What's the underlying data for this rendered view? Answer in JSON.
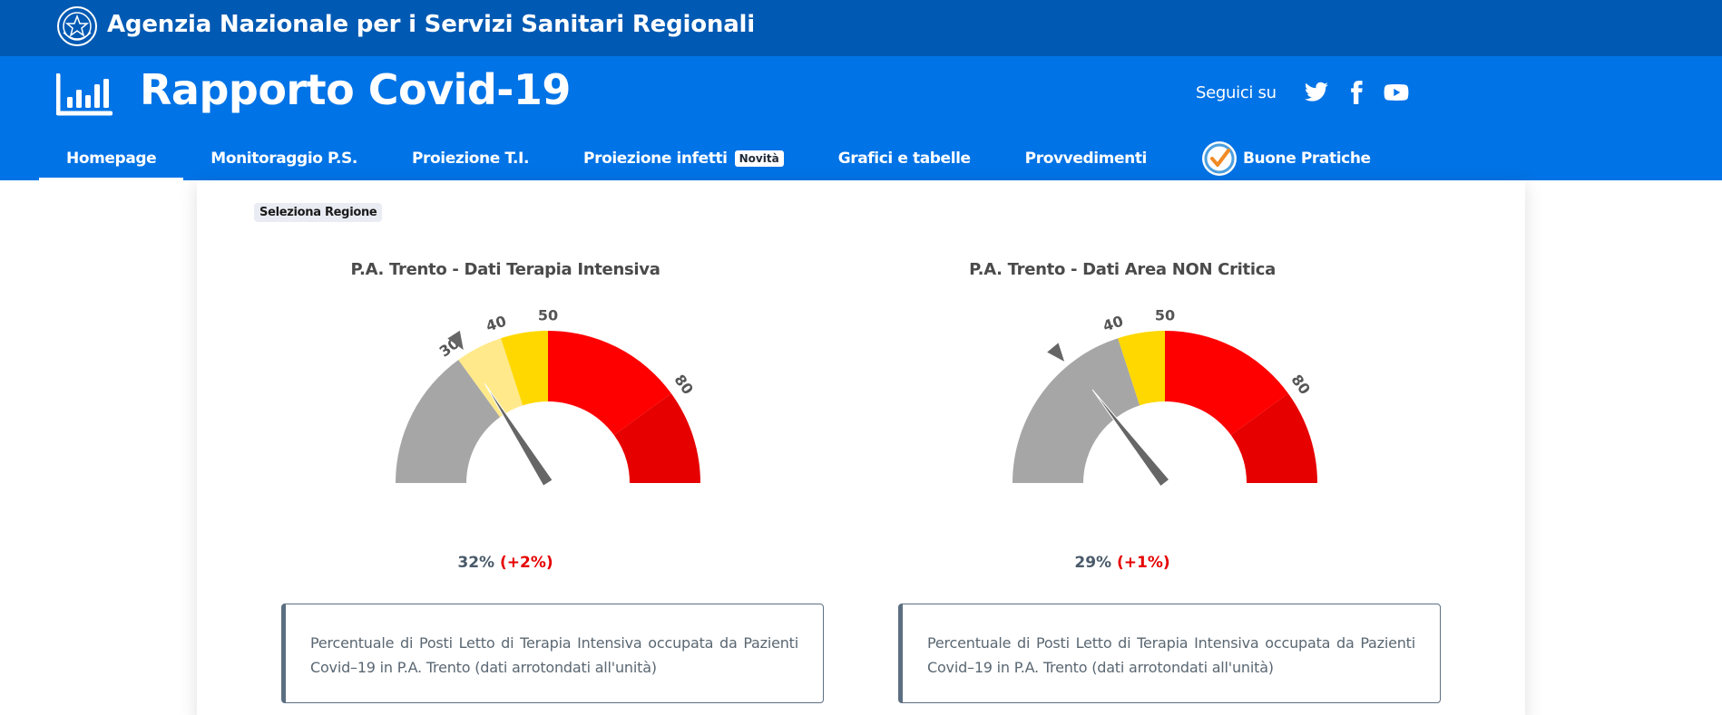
{
  "topbar": {
    "org_name": "Agenzia Nazionale per i Servizi Sanitari Regionali",
    "emblem_icon": "italian-republic-emblem-icon"
  },
  "header": {
    "brand": "Rapporto Covid-19",
    "brand_icon": "bar-chart-icon",
    "follow_label": "Seguici su",
    "social": [
      "twitter-icon",
      "facebook-icon",
      "youtube-icon"
    ]
  },
  "nav": {
    "items": [
      {
        "label": "Homepage",
        "active": true
      },
      {
        "label": "Monitoraggio P.S."
      },
      {
        "label": "Proiezione T.I."
      },
      {
        "label": "Proiezione infetti",
        "badge": "Novità"
      },
      {
        "label": "Grafici e tabelle"
      },
      {
        "label": "Provvedimenti"
      },
      {
        "label": "Buone Pratiche",
        "icon": "checkmark-badge-icon"
      }
    ]
  },
  "select_region_label": "Seleziona Regione",
  "colors": {
    "topbar": "#0059b3",
    "header": "#0073e6",
    "grey": "#a6a6a6",
    "light_yellow": "#ffe98a",
    "yellow": "#ffd800",
    "red": "#ff0000",
    "dark_red": "#e60000",
    "needle": "#666666"
  },
  "chart_data": [
    {
      "type": "gauge",
      "title": "P.A. Trento - Dati Terapia Intensiva",
      "min": 0,
      "max": 100,
      "bands": [
        {
          "from": 0,
          "to": 30,
          "color": "#a6a6a6"
        },
        {
          "from": 30,
          "to": 40,
          "color": "#ffe98a"
        },
        {
          "from": 40,
          "to": 50,
          "color": "#ffd800"
        },
        {
          "from": 50,
          "to": 80,
          "color": "#ff0000"
        },
        {
          "from": 80,
          "to": 100,
          "color": "#e60000"
        }
      ],
      "tick_labels": [
        {
          "value": 30,
          "label": "30"
        },
        {
          "value": 40,
          "label": "40"
        },
        {
          "value": 50,
          "label": "50"
        },
        {
          "value": 80,
          "label": "80"
        }
      ],
      "marker": 32,
      "value": 32,
      "value_label": "32%",
      "delta_label": "(+2%)",
      "description": "Percentuale di Posti Letto di Terapia Intensiva occupata da Pazienti Covid–19 in P.A. Trento (dati arrotondati all'unità)"
    },
    {
      "type": "gauge",
      "title": "P.A. Trento - Dati Area NON Critica",
      "min": 0,
      "max": 100,
      "bands": [
        {
          "from": 0,
          "to": 40,
          "color": "#a6a6a6"
        },
        {
          "from": 40,
          "to": 50,
          "color": "#ffd800"
        },
        {
          "from": 50,
          "to": 80,
          "color": "#ff0000"
        },
        {
          "from": 80,
          "to": 100,
          "color": "#e60000"
        }
      ],
      "tick_labels": [
        {
          "value": 40,
          "label": "40"
        },
        {
          "value": 50,
          "label": "50"
        },
        {
          "value": 80,
          "label": "80"
        }
      ],
      "marker": 28,
      "value": 29,
      "value_label": "29%",
      "delta_label": "(+1%)",
      "description": "Percentuale di Posti Letto di Terapia Intensiva occupata da Pazienti Covid–19 in P.A. Trento (dati arrotondati all'unità)"
    }
  ]
}
